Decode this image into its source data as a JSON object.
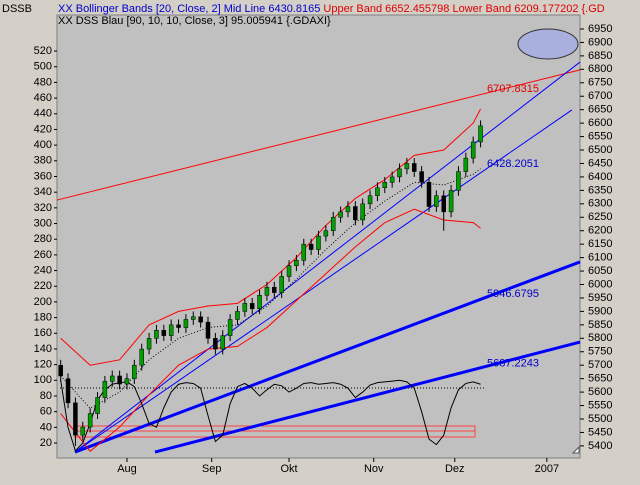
{
  "chart_data": {
    "type": "candlestick",
    "corner_label": "DSSB",
    "header": [
      [
        {
          "text": "XX Bollinger Bands [20, Close, 2] Mid Line 6430.8165",
          "color": "#0000cc"
        },
        {
          "text": " Upper Band 6652.455798 Lower Band 6209.177202 {.GD",
          "color": "#dd0000"
        }
      ],
      [
        {
          "text": "XX DSS Blau [90, 10, 10, Close, 3] 95.005941 {.GDAXI}",
          "color": "#000000"
        }
      ]
    ],
    "up_color": "#00a000",
    "down_color": "#000000",
    "open": [
      5700,
      5650,
      5560,
      5440,
      5470,
      5520,
      5580,
      5640,
      5660,
      5630,
      5650,
      5700,
      5760,
      5800,
      5830,
      5810,
      5850,
      5840,
      5870,
      5880,
      5860,
      5800,
      5760,
      5810,
      5870,
      5900,
      5930,
      5910,
      5960,
      5990,
      5970,
      6030,
      6070,
      6090,
      6150,
      6130,
      6180,
      6200,
      6250,
      6270,
      6290,
      6240,
      6300,
      6330,
      6360,
      6380,
      6400,
      6430,
      6450,
      6420,
      6380,
      6290,
      6330,
      6270,
      6350,
      6420,
      6470,
      6530
    ],
    "high": [
      5720,
      5670,
      5580,
      5490,
      5540,
      5600,
      5660,
      5680,
      5680,
      5670,
      5720,
      5780,
      5820,
      5850,
      5850,
      5870,
      5870,
      5890,
      5900,
      5900,
      5880,
      5820,
      5830,
      5890,
      5920,
      5950,
      5950,
      5980,
      6010,
      6010,
      6050,
      6090,
      6110,
      6170,
      6170,
      6200,
      6220,
      6270,
      6290,
      6310,
      6310,
      6320,
      6350,
      6380,
      6400,
      6420,
      6450,
      6470,
      6470,
      6440,
      6400,
      6350,
      6350,
      6370,
      6440,
      6490,
      6550,
      6610
    ],
    "low": [
      5640,
      5540,
      5400,
      5420,
      5450,
      5500,
      5560,
      5620,
      5610,
      5610,
      5630,
      5680,
      5740,
      5780,
      5790,
      5790,
      5820,
      5820,
      5850,
      5840,
      5780,
      5740,
      5740,
      5790,
      5850,
      5880,
      5890,
      5890,
      5940,
      5950,
      5950,
      6010,
      6050,
      6070,
      6110,
      6110,
      6160,
      6180,
      6230,
      6250,
      6220,
      6220,
      6280,
      6310,
      6340,
      6360,
      6380,
      6410,
      6400,
      6360,
      6270,
      6270,
      6200,
      6250,
      6330,
      6400,
      6450,
      6510
    ],
    "close": [
      5660,
      5560,
      5440,
      5470,
      5520,
      5580,
      5640,
      5660,
      5630,
      5650,
      5700,
      5760,
      5800,
      5830,
      5810,
      5850,
      5840,
      5870,
      5880,
      5860,
      5800,
      5760,
      5810,
      5870,
      5900,
      5930,
      5910,
      5960,
      5990,
      5970,
      6030,
      6070,
      6090,
      6150,
      6130,
      6180,
      6200,
      6250,
      6270,
      6290,
      6240,
      6300,
      6330,
      6360,
      6380,
      6400,
      6430,
      6450,
      6420,
      6380,
      6290,
      6330,
      6270,
      6350,
      6420,
      6470,
      6530,
      6590
    ],
    "bands": [
      {
        "color": "#ff0000",
        "dash": false,
        "x": [
          0,
          4,
          8,
          12,
          16,
          20,
          24,
          28,
          32,
          36,
          40,
          44,
          48,
          52,
          56,
          57
        ],
        "values": [
          5800,
          5700,
          5720,
          5850,
          5900,
          5920,
          5930,
          6000,
          6100,
          6220,
          6320,
          6390,
          6480,
          6500,
          6600,
          6652.455798
        ]
      },
      {
        "color": "#000000",
        "dash": true,
        "x": [
          0,
          4,
          8,
          12,
          16,
          20,
          24,
          28,
          32,
          36,
          40,
          44,
          48,
          52,
          56,
          57
        ],
        "values": [
          5660,
          5540,
          5600,
          5720,
          5800,
          5840,
          5850,
          5920,
          6020,
          6130,
          6230,
          6310,
          6380,
          6370,
          6410,
          6430.8165
        ]
      },
      {
        "color": "#ff0000",
        "dash": false,
        "x": [
          0,
          4,
          8,
          12,
          16,
          20,
          24,
          28,
          32,
          36,
          40,
          44,
          48,
          52,
          56,
          57
        ],
        "values": [
          5520,
          5380,
          5470,
          5590,
          5700,
          5760,
          5770,
          5840,
          5940,
          6040,
          6140,
          6230,
          6280,
          6240,
          6230,
          6209.177202
        ]
      }
    ],
    "dss": {
      "color": "#000000",
      "axis": "y2",
      "values": [
        100,
        40,
        10,
        20,
        45,
        75,
        88,
        95,
        97,
        98,
        92,
        70,
        45,
        40,
        65,
        85,
        95,
        97,
        96,
        90,
        55,
        22,
        30,
        70,
        92,
        96,
        90,
        80,
        88,
        95,
        93,
        85,
        90,
        96,
        97,
        95,
        96,
        97,
        95,
        90,
        78,
        85,
        94,
        97,
        98,
        99,
        100,
        98,
        90,
        60,
        25,
        18,
        30,
        65,
        88,
        96,
        98,
        95.005941
      ]
    },
    "trendlines": [
      {
        "color": "#ff0000",
        "width": 1,
        "x": [
          -0.5,
          70.5
        ],
        "values": [
          6314,
          6798
        ]
      },
      {
        "color": "#0000ff",
        "width": 1,
        "x": [
          1.94,
          70.5
        ],
        "values": [
          5377,
          6827
        ]
      },
      {
        "color": "#0000ff",
        "width": 1,
        "x": [
          1.94,
          69.4
        ],
        "values": [
          5377,
          6649
        ]
      },
      {
        "color": "#0000ff",
        "width": 3,
        "x": [
          1.94,
          70.5
        ],
        "values": [
          5377,
          6084
        ]
      },
      {
        "color": "#0000ff",
        "width": 3,
        "x": [
          12.8,
          70.5
        ],
        "values": [
          5377,
          5786
        ]
      }
    ],
    "annotations": [
      {
        "value": 6707.8315,
        "color": "#dd0000"
      },
      {
        "value": 6428.2051,
        "color": "#0000cc"
      },
      {
        "value": 5946.6795,
        "color": "#0000cc"
      },
      {
        "value": 5687.2243,
        "color": "#0000cc"
      }
    ],
    "xlim": [
      -0.5,
      70.5
    ],
    "xticks": [
      {
        "value": 9,
        "label": "Aug"
      },
      {
        "value": 20.5,
        "label": "Sep"
      },
      {
        "value": 31,
        "label": "Okt"
      },
      {
        "value": 42.5,
        "label": "Nov"
      },
      {
        "value": 53.5,
        "label": "Dez"
      },
      {
        "value": 66,
        "label": "2007"
      }
    ],
    "ylim": [
      5355,
      7002
    ],
    "yticks": [
      5400,
      5450,
      5500,
      5550,
      5600,
      5650,
      5700,
      5750,
      5800,
      5850,
      5900,
      5950,
      6000,
      6050,
      6100,
      6150,
      6200,
      6250,
      6300,
      6350,
      6400,
      6450,
      6500,
      6550,
      6600,
      6650,
      6700,
      6750,
      6800,
      6850,
      6900,
      6950
    ],
    "y2lim": [
      0.9,
      566
    ],
    "y2ticks": [
      20,
      40,
      60,
      80,
      100,
      120,
      140,
      160,
      180,
      200,
      220,
      240,
      260,
      280,
      300,
      320,
      340,
      360,
      380,
      400,
      420,
      440,
      460,
      480,
      500,
      520
    ]
  }
}
